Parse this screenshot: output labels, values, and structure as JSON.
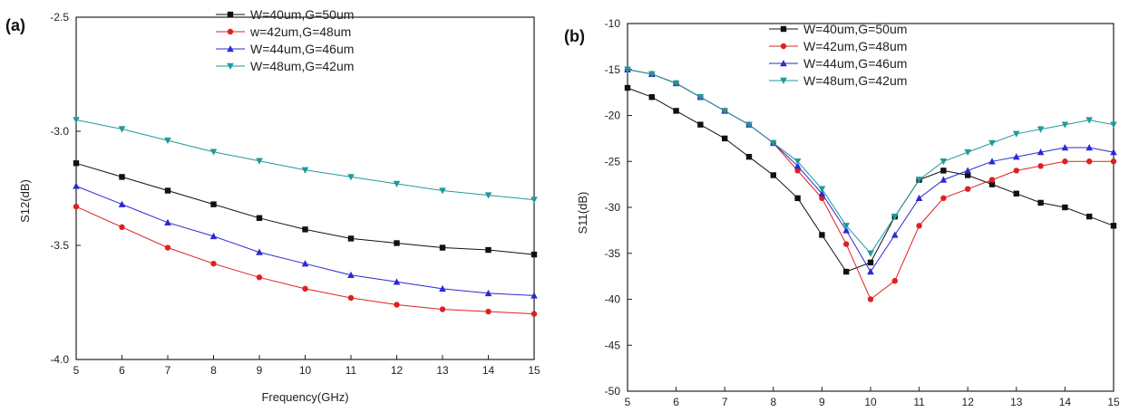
{
  "chart_data": [
    {
      "type": "line",
      "panel_label": "(a)",
      "xlabel": "Frequency(GHz)",
      "ylabel": "S12(dB)",
      "xlim": [
        5,
        15
      ],
      "ylim": [
        -4.0,
        -2.5
      ],
      "x_ticks": [
        5,
        6,
        7,
        8,
        9,
        10,
        11,
        12,
        13,
        14,
        15
      ],
      "y_ticks": [
        -4.0,
        -3.5,
        -3.0,
        -2.5
      ],
      "y_tick_labels": [
        "-4.0",
        "-3.5",
        "-3.0",
        "-2.5"
      ],
      "grid": false,
      "legend_position": "top-center",
      "series": [
        {
          "name": "W=40um,G=50um",
          "color": "#111111",
          "marker": "square",
          "x": [
            5,
            6,
            7,
            8,
            9,
            10,
            11,
            12,
            13,
            14,
            15
          ],
          "y": [
            -3.14,
            -3.2,
            -3.26,
            -3.32,
            -3.38,
            -3.43,
            -3.47,
            -3.49,
            -3.51,
            -3.52,
            -3.54
          ]
        },
        {
          "name": "w=42um,G=48um",
          "color": "#e02020",
          "marker": "circle",
          "x": [
            5,
            6,
            7,
            8,
            9,
            10,
            11,
            12,
            13,
            14,
            15
          ],
          "y": [
            -3.33,
            -3.42,
            -3.51,
            -3.58,
            -3.64,
            -3.69,
            -3.73,
            -3.76,
            -3.78,
            -3.79,
            -3.8
          ]
        },
        {
          "name": "W=44um,G=46um",
          "color": "#2a2ad0",
          "marker": "triangle-up",
          "x": [
            5,
            6,
            7,
            8,
            9,
            10,
            11,
            12,
            13,
            14,
            15
          ],
          "y": [
            -3.24,
            -3.32,
            -3.4,
            -3.46,
            -3.53,
            -3.58,
            -3.63,
            -3.66,
            -3.69,
            -3.71,
            -3.72
          ]
        },
        {
          "name": "W=48um,G=42um",
          "color": "#1f9a9a",
          "marker": "triangle-down",
          "x": [
            5,
            6,
            7,
            8,
            9,
            10,
            11,
            12,
            13,
            14,
            15
          ],
          "y": [
            -2.95,
            -2.99,
            -3.04,
            -3.09,
            -3.13,
            -3.17,
            -3.2,
            -3.23,
            -3.26,
            -3.28,
            -3.3
          ]
        }
      ]
    },
    {
      "type": "line",
      "panel_label": "(b)",
      "xlabel": "",
      "ylabel": "S11(dB)",
      "xlim": [
        5,
        15
      ],
      "ylim": [
        -50,
        -10
      ],
      "x_ticks": [
        5,
        6,
        7,
        8,
        9,
        10,
        11,
        12,
        13,
        14,
        15
      ],
      "y_ticks": [
        -50,
        -45,
        -40,
        -35,
        -30,
        -25,
        -20,
        -15,
        -10
      ],
      "y_tick_labels": [
        "-50",
        "-45",
        "-40",
        "-35",
        "-30",
        "-25",
        "-20",
        "-15",
        "-10"
      ],
      "grid": false,
      "legend_position": "top-center",
      "series": [
        {
          "name": "W=40um,G=50um",
          "color": "#111111",
          "marker": "square",
          "x": [
            5,
            5.5,
            6,
            6.5,
            7,
            7.5,
            8,
            8.5,
            9,
            9.5,
            10,
            10.5,
            11,
            11.5,
            12,
            12.5,
            13,
            13.5,
            14,
            14.5,
            15
          ],
          "y": [
            -17,
            -18,
            -19.5,
            -21,
            -22.5,
            -24.5,
            -26.5,
            -29,
            -33,
            -37,
            -36,
            -31,
            -27,
            -26,
            -26.5,
            -27.5,
            -28.5,
            -29.5,
            -30,
            -31,
            -32
          ]
        },
        {
          "name": "W=42um,G=48um",
          "color": "#e02020",
          "marker": "circle",
          "x": [
            5,
            5.5,
            6,
            6.5,
            7,
            7.5,
            8,
            8.5,
            9,
            9.5,
            10,
            10.5,
            11,
            11.5,
            12,
            12.5,
            13,
            13.5,
            14,
            14.5,
            15
          ],
          "y": [
            -15,
            -15.5,
            -16.5,
            -18,
            -19.5,
            -21,
            -23,
            -26,
            -29,
            -34,
            -40,
            -38,
            -32,
            -29,
            -28,
            -27,
            -26,
            -25.5,
            -25,
            -25,
            -25
          ]
        },
        {
          "name": "W=44um,G=46um",
          "color": "#2a2ad0",
          "marker": "triangle-up",
          "x": [
            5,
            5.5,
            6,
            6.5,
            7,
            7.5,
            8,
            8.5,
            9,
            9.5,
            10,
            10.5,
            11,
            11.5,
            12,
            12.5,
            13,
            13.5,
            14,
            14.5,
            15
          ],
          "y": [
            -15,
            -15.5,
            -16.5,
            -18,
            -19.5,
            -21,
            -23,
            -25.5,
            -28.5,
            -32.5,
            -37,
            -33,
            -29,
            -27,
            -26,
            -25,
            -24.5,
            -24,
            -23.5,
            -23.5,
            -24
          ]
        },
        {
          "name": "W=48um,G=42um",
          "color": "#1f9a9a",
          "marker": "triangle-down",
          "x": [
            5,
            5.5,
            6,
            6.5,
            7,
            7.5,
            8,
            8.5,
            9,
            9.5,
            10,
            10.5,
            11,
            11.5,
            12,
            12.5,
            13,
            13.5,
            14,
            14.5,
            15
          ],
          "y": [
            -15,
            -15.5,
            -16.5,
            -18,
            -19.5,
            -21,
            -23,
            -25,
            -28,
            -32,
            -35,
            -31,
            -27,
            -25,
            -24,
            -23,
            -22,
            -21.5,
            -21,
            -20.5,
            -21
          ]
        }
      ]
    }
  ]
}
